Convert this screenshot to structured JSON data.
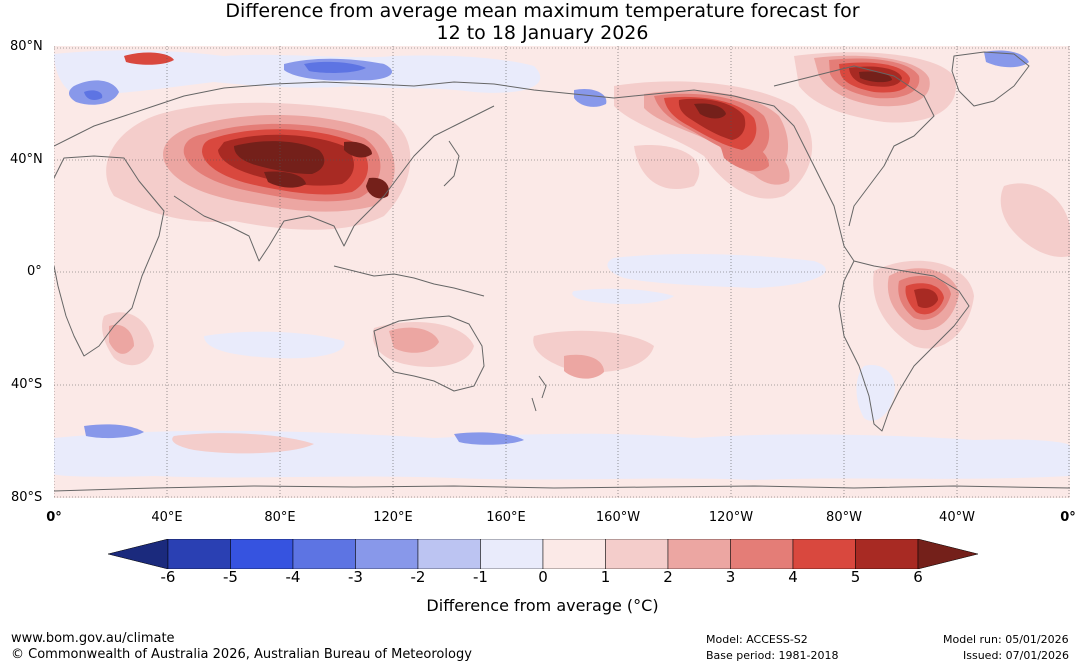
{
  "title": {
    "line1": "Difference from average mean maximum temperature forecast for",
    "line2": "12 to 18 January 2026"
  },
  "map": {
    "lat_labels": [
      "80°N",
      "40°N",
      "0°",
      "40°S",
      "80°S"
    ],
    "lon_labels": [
      "0°",
      "40°E",
      "80°E",
      "120°E",
      "160°E",
      "160°W",
      "120°W",
      "80°W",
      "40°W",
      "0°"
    ],
    "ocean_color": "#fbe9e7",
    "coastline_color": "#666666",
    "anomaly_regions": [
      {
        "name": "Central Asia / Mongolia / China",
        "max_anomaly": 6
      },
      {
        "name": "Alaska / Western Canada",
        "max_anomaly": 6
      },
      {
        "name": "Greenland / Eastern Canada",
        "max_anomaly": 6
      },
      {
        "name": "Brazil",
        "max_anomaly": 6
      },
      {
        "name": "Northern Europe / Arctic Russia",
        "min_anomaly": -4
      },
      {
        "name": "Southern Ocean",
        "min_anomaly": -3
      }
    ]
  },
  "legend": {
    "ticks": [
      "-6",
      "-5",
      "-4",
      "-3",
      "-2",
      "-1",
      "0",
      "1",
      "2",
      "3",
      "4",
      "5",
      "6"
    ],
    "colors": [
      "#1b2a7d",
      "#2a40b3",
      "#3653e0",
      "#5d74e3",
      "#8898ea",
      "#bcc4f2",
      "#e9ebfb",
      "#fbe9e7",
      "#f4cdcb",
      "#eca6a2",
      "#e47d77",
      "#d9483e",
      "#a82a23",
      "#74201a"
    ],
    "label": "Difference from average (°C)"
  },
  "footer": {
    "website": "www.bom.gov.au/climate",
    "copyright": "© Commonwealth of Australia 2026, Australian Bureau of Meteorology",
    "model": "Model: ACCESS-S2",
    "base_period": "Base period: 1981-2018",
    "model_run": "Model run: 05/01/2026",
    "issued": "Issued: 07/01/2026"
  }
}
